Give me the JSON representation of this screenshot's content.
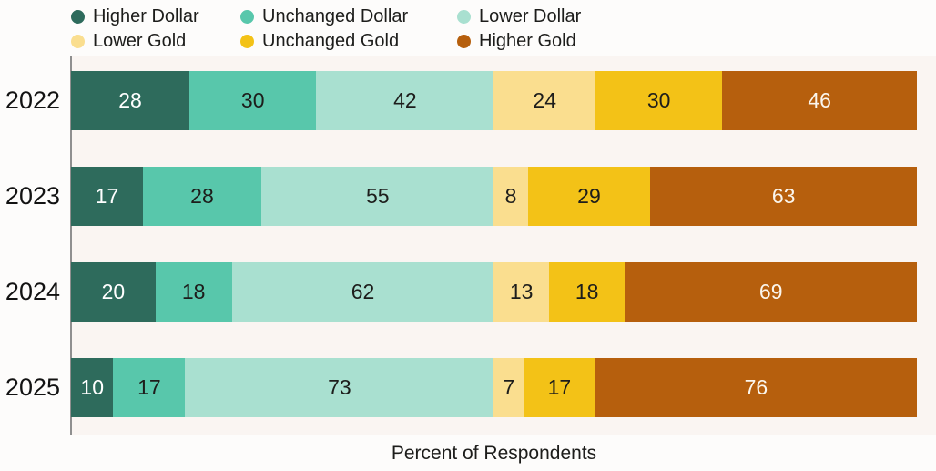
{
  "page": {
    "background": "#fdfcfb",
    "plot_background": "#faf5f2",
    "axis_color": "#8f8f8f"
  },
  "chart_data": {
    "type": "bar",
    "orientation": "horizontal",
    "stacked": true,
    "title": "",
    "xlabel": "Percent of Respondents",
    "categories": [
      "2022",
      "2023",
      "2024",
      "2025"
    ],
    "x_total_per_row": 200,
    "xlim": [
      0,
      200
    ],
    "grid": false,
    "legend_position": "top-left",
    "legend_layout": "2 rows x 3 columns",
    "series": [
      {
        "name": "Higher Dollar",
        "color": "#2E6B5C",
        "label_color": "#FFFFFF",
        "values": [
          28,
          17,
          20,
          10
        ]
      },
      {
        "name": "Unchanged Dollar",
        "color": "#58C7AB",
        "label_color": "#1D1D1B",
        "values": [
          30,
          28,
          18,
          17
        ]
      },
      {
        "name": "Lower Dollar",
        "color": "#A9E0D0",
        "label_color": "#1D1D1B",
        "values": [
          42,
          55,
          62,
          73
        ]
      },
      {
        "name": "Lower Gold",
        "color": "#FADE8F",
        "label_color": "#1D1D1B",
        "values": [
          24,
          8,
          13,
          7
        ]
      },
      {
        "name": "Unchanged Gold",
        "color": "#F3C217",
        "label_color": "#1D1D1B",
        "values": [
          30,
          29,
          18,
          17
        ]
      },
      {
        "name": "Higher Gold",
        "color": "#B65F0D",
        "label_color": "#FBF6ED",
        "values": [
          46,
          63,
          69,
          76
        ]
      }
    ]
  }
}
